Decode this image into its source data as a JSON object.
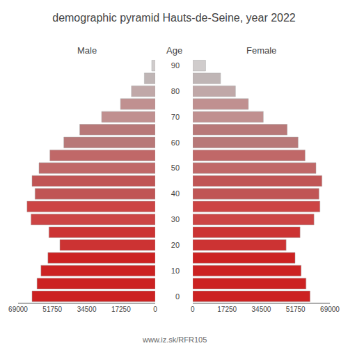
{
  "chart_data": {
    "type": "bar",
    "orientation": "horizontal",
    "title": "demographic pyramid Hauts-de-Seine, year 2022",
    "ylabel": "Age",
    "categories": [
      "0",
      null,
      "10",
      null,
      "20",
      null,
      "30",
      null,
      "40",
      null,
      "50",
      null,
      "60",
      null,
      "70",
      null,
      "80",
      null,
      "90"
    ],
    "series": [
      {
        "name": "Male",
        "values": [
          62000,
          59500,
          57500,
          54000,
          48000,
          53500,
          62500,
          64500,
          60500,
          62000,
          58500,
          53000,
          46000,
          38000,
          27000,
          17500,
          12000,
          5500,
          1800
        ]
      },
      {
        "name": "Female",
        "values": [
          59000,
          57000,
          54500,
          51500,
          47000,
          54000,
          61000,
          64000,
          63500,
          65000,
          62000,
          56500,
          53000,
          47500,
          35500,
          28000,
          21500,
          14000,
          6500
        ]
      }
    ],
    "colors": [
      "#cc2222",
      "#cc2222",
      "#cc2222",
      "#cc2222",
      "#cc3333",
      "#cc3333",
      "#cc4444",
      "#cc4444",
      "#c05555",
      "#c05555",
      "#c06868",
      "#c06868",
      "#b87878",
      "#b87878",
      "#c09090",
      "#c09090",
      "#c0a8a8",
      "#bfb5b5",
      "#d0cccc"
    ],
    "xlim": [
      0,
      69000
    ],
    "xticks": [
      0,
      17250,
      34500,
      51750,
      69000
    ],
    "annotations": [
      "www.iz.sk/RFR105"
    ],
    "grid": false
  }
}
